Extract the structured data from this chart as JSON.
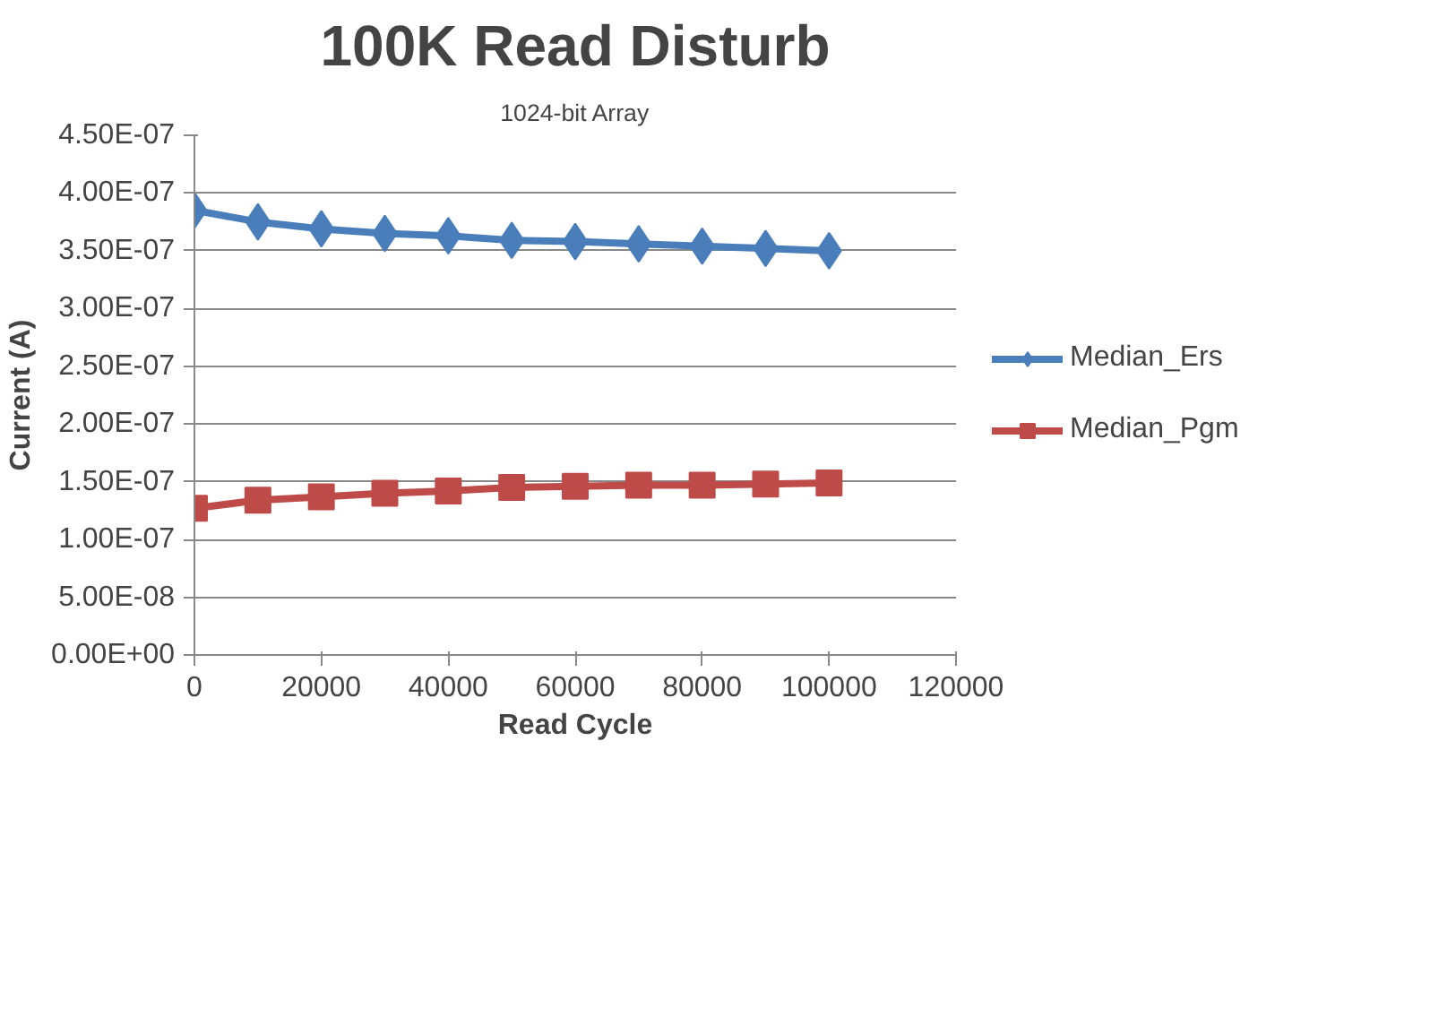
{
  "chart_data": {
    "type": "line",
    "title": "100K Read Disturb",
    "subtitle": "1024-bit Array",
    "xlabel": "Read Cycle",
    "ylabel": "Current (A)",
    "x": [
      0,
      10000,
      20000,
      30000,
      40000,
      50000,
      60000,
      70000,
      80000,
      90000,
      100000
    ],
    "series": [
      {
        "name": "Median_Ers",
        "color": "#4a7ebb",
        "marker": "diamond",
        "values": [
          3.85e-07,
          3.75e-07,
          3.69e-07,
          3.65e-07,
          3.63e-07,
          3.59e-07,
          3.58e-07,
          3.56e-07,
          3.54e-07,
          3.52e-07,
          3.5e-07
        ]
      },
      {
        "name": "Median_Pgm",
        "color": "#be4b48",
        "marker": "square",
        "values": [
          1.27e-07,
          1.34e-07,
          1.37e-07,
          1.4e-07,
          1.42e-07,
          1.45e-07,
          1.46e-07,
          1.47e-07,
          1.47e-07,
          1.48e-07,
          1.49e-07
        ]
      }
    ],
    "xlim": [
      0,
      120000
    ],
    "xticks": [
      0,
      20000,
      40000,
      60000,
      80000,
      100000,
      120000
    ],
    "ylim": [
      0,
      4.5e-07
    ],
    "yticks": [
      {
        "value": 0,
        "label": "0.00E+00"
      },
      {
        "value": 5e-08,
        "label": "5.00E-08"
      },
      {
        "value": 1e-07,
        "label": "1.00E-07"
      },
      {
        "value": 1.5e-07,
        "label": "1.50E-07"
      },
      {
        "value": 2e-07,
        "label": "2.00E-07"
      },
      {
        "value": 2.5e-07,
        "label": "2.50E-07"
      },
      {
        "value": 3e-07,
        "label": "3.00E-07"
      },
      {
        "value": 3.5e-07,
        "label": "3.50E-07"
      },
      {
        "value": 4e-07,
        "label": "4.00E-07"
      },
      {
        "value": 4.5e-07,
        "label": "4.50E-07"
      }
    ],
    "grid": "y",
    "legend": "right",
    "line_style": "solid"
  }
}
